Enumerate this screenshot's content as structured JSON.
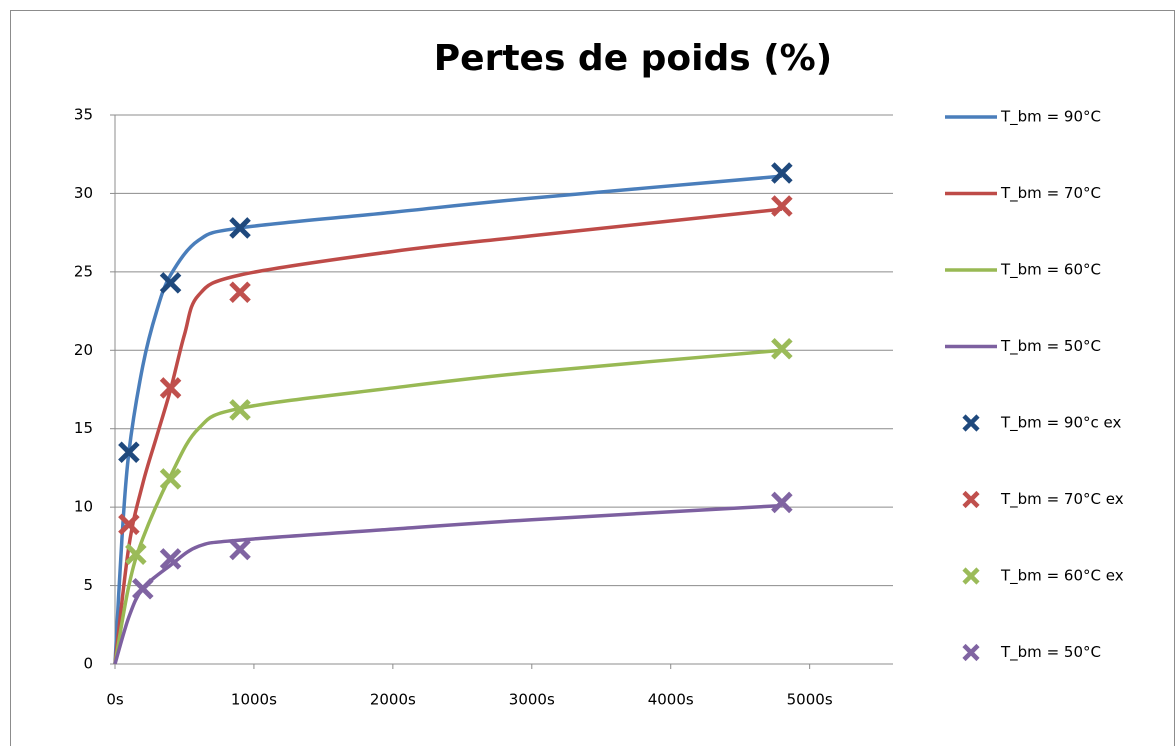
{
  "chart_data": {
    "type": "line",
    "title": "Pertes de poids (%)",
    "xlim": [
      0,
      5600
    ],
    "xticks": [
      {
        "value": 0,
        "label": "0s"
      },
      {
        "value": 1000,
        "label": "1000s"
      },
      {
        "value": 2000,
        "label": "2000s"
      },
      {
        "value": 3000,
        "label": "3000s"
      },
      {
        "value": 4000,
        "label": "4000s"
      },
      {
        "value": 5000,
        "label": "5000s"
      }
    ],
    "ylim": [
      0,
      35
    ],
    "yticks": [
      0,
      5,
      10,
      15,
      20,
      25,
      30,
      35
    ],
    "grid": true,
    "legend": "right",
    "series": [
      {
        "name": "T_bm = 90°C",
        "color": "#4a7ebb",
        "style": "line",
        "x": [
          0,
          50,
          100,
          200,
          300,
          400,
          600,
          900,
          2000,
          3000,
          4800
        ],
        "values": [
          0,
          8,
          13.5,
          19,
          22.5,
          24.8,
          27,
          27.8,
          28.8,
          29.7,
          31.1
        ]
      },
      {
        "name": "T_bm = 70°C",
        "color": "#be4b48",
        "style": "line",
        "x": [
          0,
          100,
          200,
          300,
          400,
          500,
          600,
          900,
          2000,
          3000,
          4800
        ],
        "values": [
          0,
          7.5,
          11.5,
          14.5,
          17.5,
          21,
          23.5,
          24.8,
          26.3,
          27.3,
          29
        ]
      },
      {
        "name": "T_bm = 60°C",
        "color": "#98b954",
        "style": "line",
        "x": [
          0,
          100,
          200,
          400,
          600,
          900,
          2000,
          3000,
          4800
        ],
        "values": [
          0,
          5,
          8,
          12,
          15,
          16.3,
          17.6,
          18.6,
          20
        ]
      },
      {
        "name": "T_bm = 50°C",
        "color": "#7d60a0",
        "style": "line",
        "x": [
          0,
          100,
          200,
          400,
          600,
          900,
          2000,
          3000,
          4800
        ],
        "values": [
          0,
          3,
          4.8,
          6.3,
          7.5,
          7.9,
          8.6,
          9.2,
          10.1
        ]
      },
      {
        "name": "T_bm = 90°c ex",
        "color": "#1f497d",
        "style": "marker",
        "x": [
          100,
          400,
          900,
          4800
        ],
        "values": [
          13.5,
          24.3,
          27.8,
          31.3
        ]
      },
      {
        "name": "T_bm = 70°C ex",
        "color": "#c0504d",
        "style": "marker",
        "x": [
          100,
          400,
          900,
          4800
        ],
        "values": [
          8.9,
          17.6,
          23.7,
          29.2
        ]
      },
      {
        "name": "T_bm = 60°C ex",
        "color": "#9bbb59",
        "style": "marker",
        "x": [
          150,
          400,
          900,
          4800
        ],
        "values": [
          7,
          11.8,
          16.2,
          20.1
        ]
      },
      {
        "name": "T_bm = 50°C",
        "color": "#8064a2",
        "style": "marker",
        "x": [
          200,
          400,
          900,
          4800
        ],
        "values": [
          4.8,
          6.7,
          7.3,
          10.3
        ]
      }
    ]
  }
}
